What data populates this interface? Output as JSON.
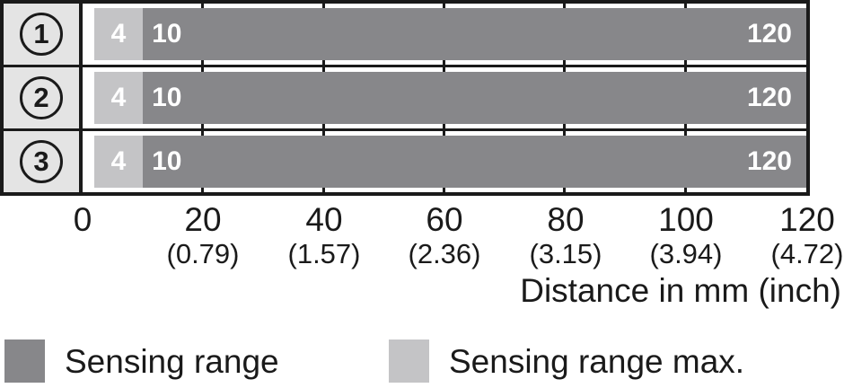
{
  "chart_data": {
    "type": "bar",
    "orientation": "horizontal",
    "title": "",
    "axis_title": "Distance in mm (inch)",
    "xlim": [
      0,
      120
    ],
    "grid": "vertical gridlines every 20 mm, visible at row edges",
    "x_ticks": [
      {
        "mm": "0",
        "inch": ""
      },
      {
        "mm": "20",
        "inch": "(0.79)"
      },
      {
        "mm": "40",
        "inch": "(1.57)"
      },
      {
        "mm": "60",
        "inch": "(2.36)"
      },
      {
        "mm": "80",
        "inch": "(3.15)"
      },
      {
        "mm": "100",
        "inch": "(3.94)"
      },
      {
        "mm": "120",
        "inch": "(4.72)"
      }
    ],
    "rows": [
      {
        "label": "1",
        "sensing_range_max_mm": [
          4,
          10
        ],
        "sensing_range_mm": [
          10,
          120
        ],
        "bar_labels": {
          "max_start": "4",
          "range_start": "10",
          "range_end": "120"
        }
      },
      {
        "label": "2",
        "sensing_range_max_mm": [
          4,
          10
        ],
        "sensing_range_mm": [
          10,
          120
        ],
        "bar_labels": {
          "max_start": "4",
          "range_start": "10",
          "range_end": "120"
        }
      },
      {
        "label": "3",
        "sensing_range_max_mm": [
          4,
          10
        ],
        "sensing_range_mm": [
          10,
          120
        ],
        "bar_labels": {
          "max_start": "4",
          "range_start": "10",
          "range_end": "120"
        }
      }
    ],
    "legend": [
      {
        "label": "Sensing range",
        "color": "#87878a"
      },
      {
        "label": "Sensing range max.",
        "color": "#c4c4c6"
      }
    ],
    "colors": {
      "sensing_range": "#87878a",
      "sensing_range_max": "#c4c4c6",
      "row_label_background": "#e4e4e4",
      "border": "#1a1a1a",
      "bar_text": "#ffffff"
    }
  }
}
